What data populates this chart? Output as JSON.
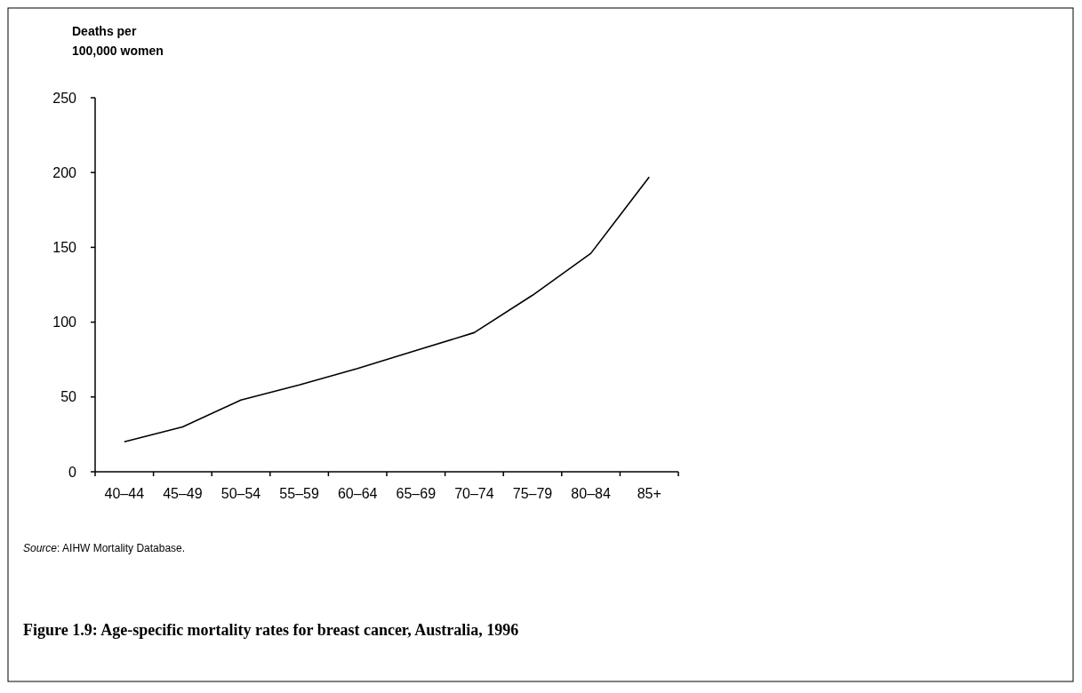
{
  "chart_data": {
    "type": "line",
    "title": "Figure 1.9: Age-specific mortality rates for breast cancer, Australia, 1996",
    "ylabel": "Deaths per 100,000 women",
    "categories": [
      "40–44",
      "45–49",
      "50–54",
      "55–59",
      "60–64",
      "65–69",
      "70–74",
      "75–79",
      "80–84",
      "85+"
    ],
    "series": [
      {
        "color": "#000000",
        "values": [
          20,
          30,
          48,
          58,
          69,
          81,
          93,
          118,
          146,
          197
        ]
      }
    ],
    "ylim": [
      0,
      250
    ],
    "yticks": [
      0,
      50,
      100,
      150,
      200,
      250
    ],
    "grid": false,
    "marker": "none",
    "line_style": "solid",
    "annotations": [
      "Source: AIHW Mortality Database."
    ]
  }
}
